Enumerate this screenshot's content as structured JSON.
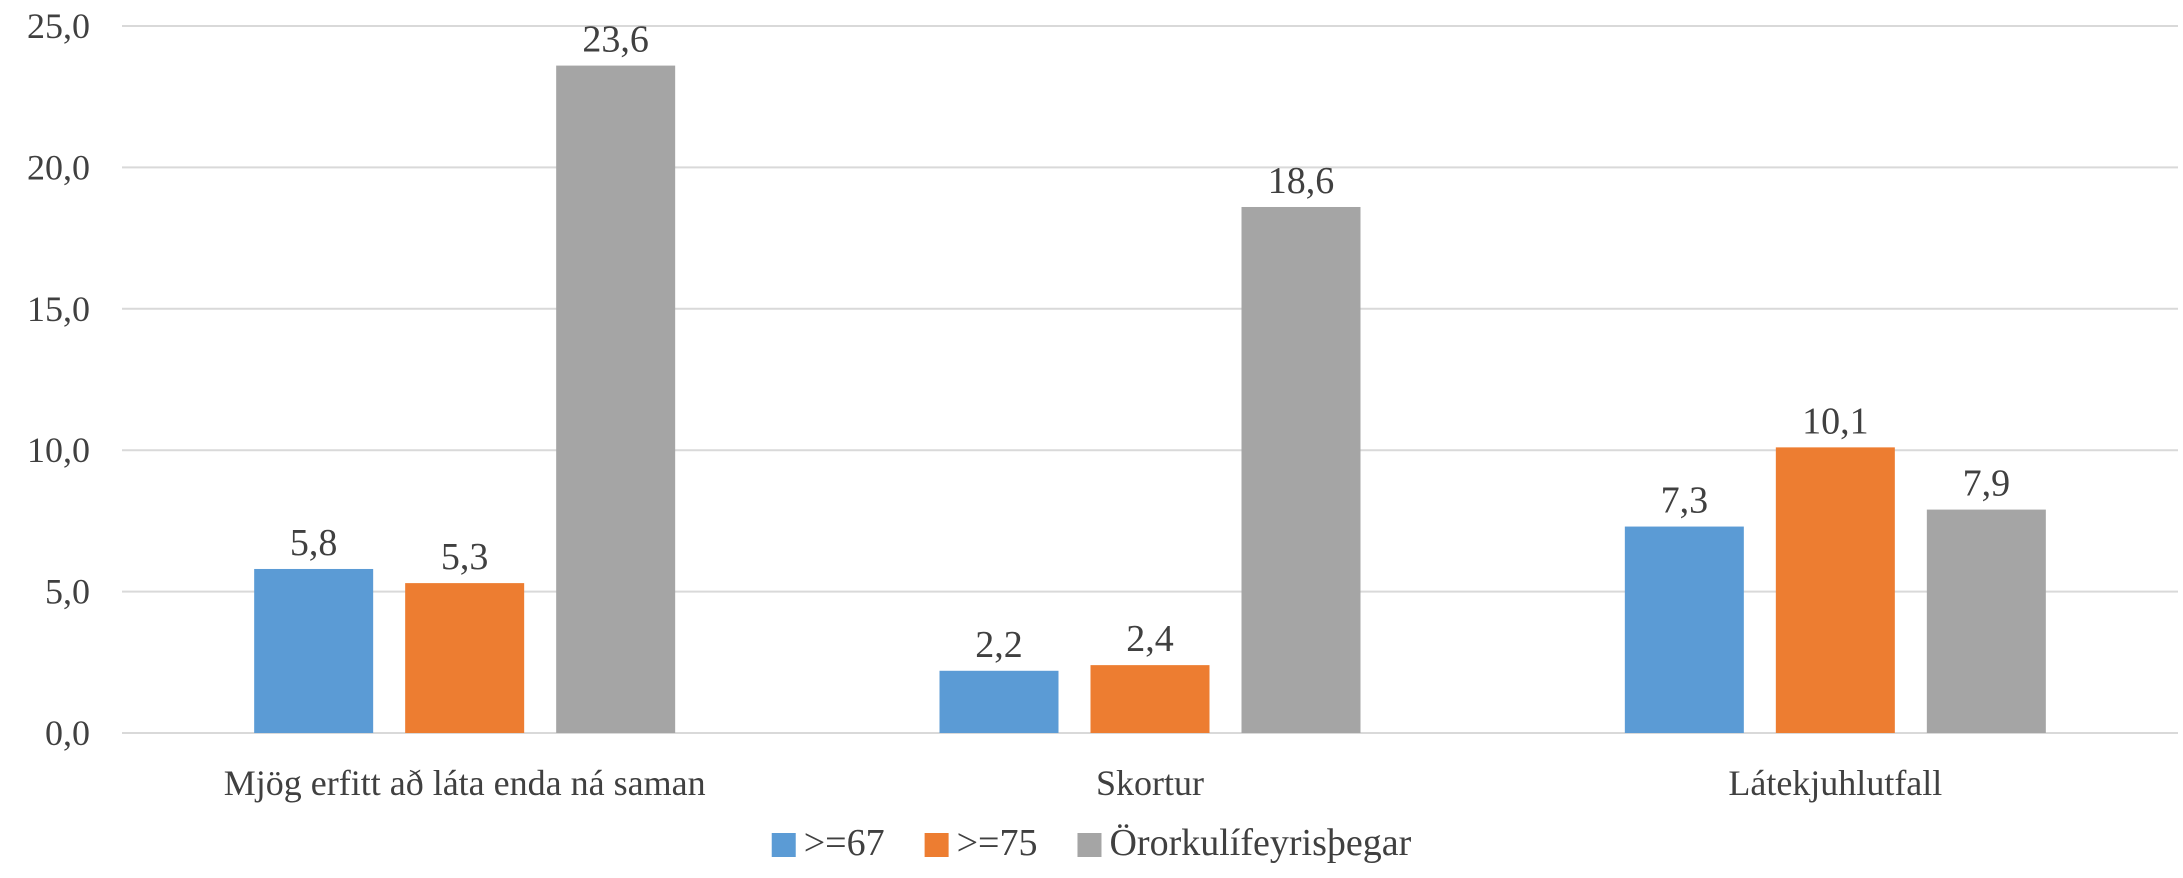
{
  "chart_data": {
    "type": "bar",
    "categories": [
      "Mjög erfitt að láta enda ná saman",
      "Skortur",
      "Látekjuhlutfall"
    ],
    "series": [
      {
        "name": ">=67",
        "color": "#5b9bd5",
        "values": [
          5.8,
          2.2,
          7.3
        ],
        "labels": [
          "5,8",
          "2,2",
          "7,3"
        ]
      },
      {
        "name": ">=75",
        "color": "#ed7d31",
        "values": [
          5.3,
          2.4,
          10.1
        ],
        "labels": [
          "5,3",
          "2,4",
          "10,1"
        ]
      },
      {
        "name": "Örorkulífeyrisþegar",
        "color": "#a5a5a5",
        "values": [
          23.6,
          18.6,
          7.9
        ],
        "labels": [
          "23,6",
          "18,6",
          "7,9"
        ]
      }
    ],
    "ylim": [
      0,
      25
    ],
    "y_ticks": [
      0,
      5,
      10,
      15,
      20,
      25
    ],
    "y_tick_labels": [
      "0,0",
      "5,0",
      "10,0",
      "15,0",
      "20,0",
      "25,0"
    ],
    "grid": true,
    "legend_position": "bottom"
  }
}
